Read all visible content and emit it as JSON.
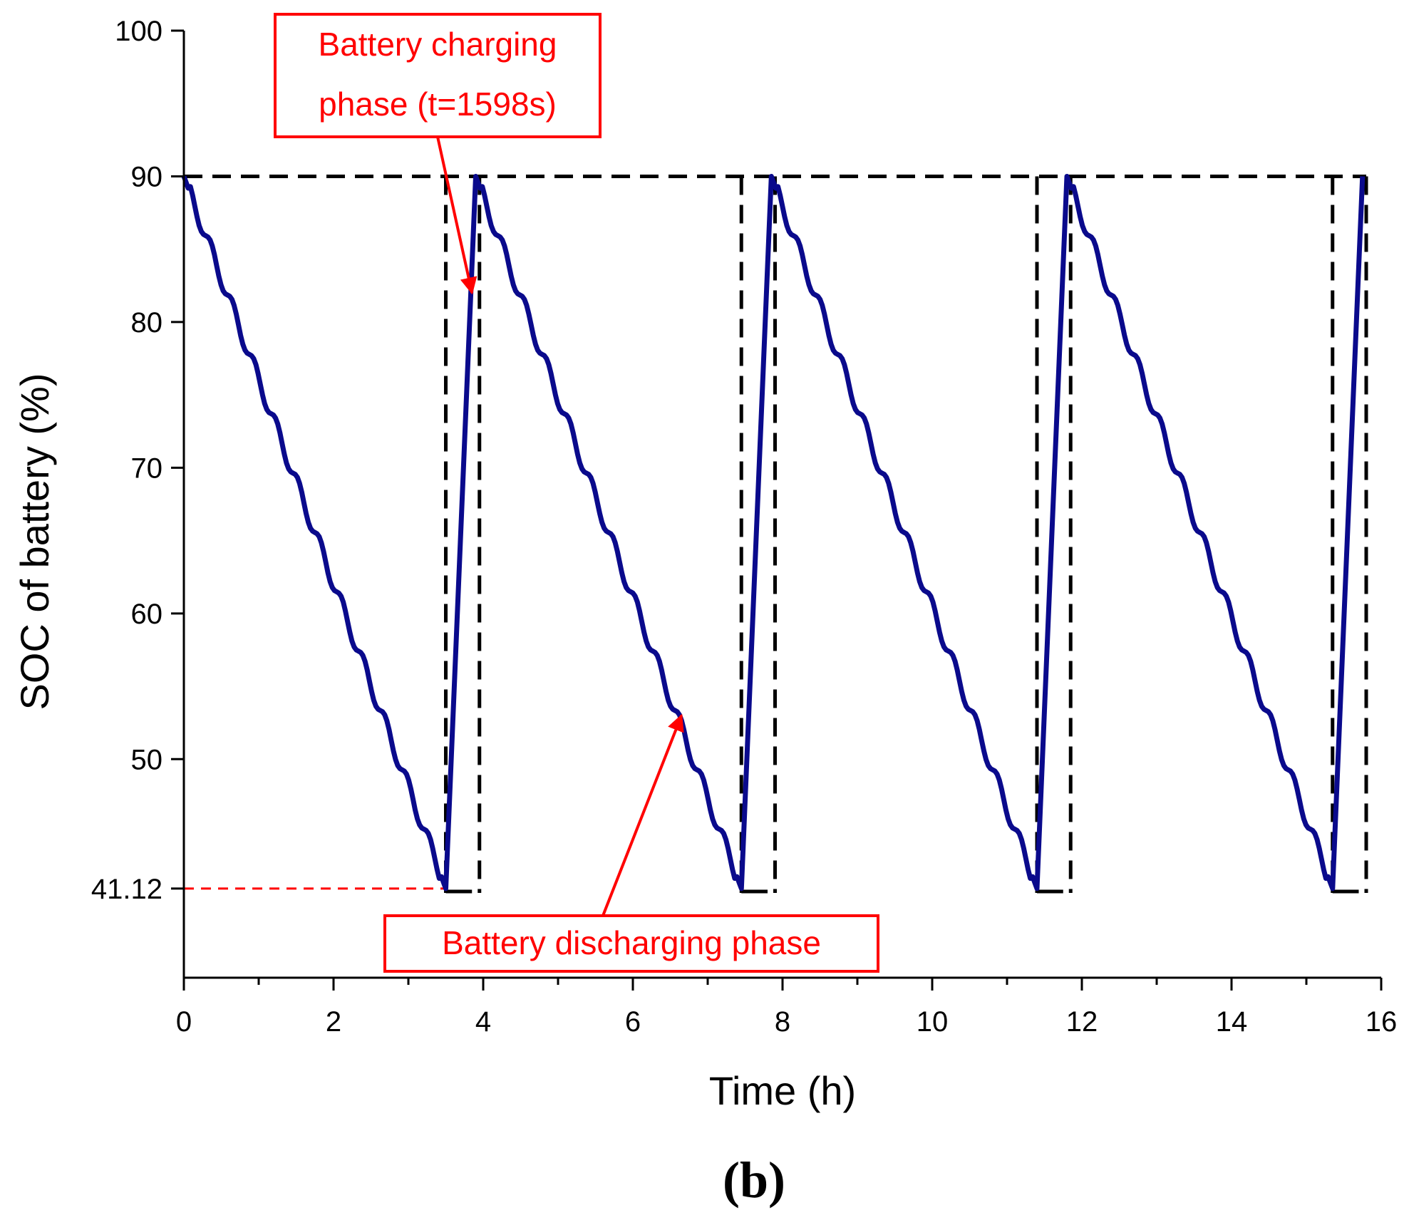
{
  "chart_data": {
    "type": "line",
    "panel_label": "(b)",
    "xlabel": "Time (h)",
    "ylabel": "SOC of battery (%)",
    "xlim": [
      0,
      16
    ],
    "ylim": [
      35,
      100
    ],
    "x_ticks": [
      {
        "value": 0,
        "label": "0"
      },
      {
        "value": 2,
        "label": "2"
      },
      {
        "value": 4,
        "label": "4"
      },
      {
        "value": 6,
        "label": "6"
      },
      {
        "value": 8,
        "label": "8"
      },
      {
        "value": 10,
        "label": "10"
      },
      {
        "value": 12,
        "label": "12"
      },
      {
        "value": 14,
        "label": "14"
      },
      {
        "value": 16,
        "label": "16"
      }
    ],
    "y_ticks": [
      {
        "value": 41.12,
        "label": "41.12"
      },
      {
        "value": 50,
        "label": "50"
      },
      {
        "value": 60,
        "label": "60"
      },
      {
        "value": 70,
        "label": "70"
      },
      {
        "value": 80,
        "label": "80"
      },
      {
        "value": 90,
        "label": "90"
      },
      {
        "value": 100,
        "label": "100"
      }
    ],
    "series": [
      {
        "name": "SOC",
        "color": "#0a0a8c",
        "cycles": [
          {
            "start": 0.0,
            "min_time": 3.5,
            "peak_time": 3.9
          },
          {
            "start": 3.9,
            "min_time": 7.45,
            "peak_time": 7.85
          },
          {
            "start": 7.85,
            "min_time": 11.4,
            "peak_time": 11.8
          },
          {
            "start": 11.8,
            "min_time": 15.35,
            "peak_time": 15.75
          }
        ],
        "max": 90,
        "min": 41.12
      }
    ],
    "reference_lines": {
      "upper_level": 90,
      "lower_level": 41.12,
      "verticals": [
        3.5,
        3.95,
        7.45,
        7.9,
        11.4,
        11.85,
        15.35,
        15.8
      ],
      "lower_ref_color": "#ff0000",
      "guide_color": "#000000"
    },
    "annotations": [
      {
        "lines": [
          "Battery charging",
          "phase (t=1598s)"
        ],
        "target": {
          "x": 3.85,
          "y": 82
        },
        "color": "#ff0000"
      },
      {
        "lines": [
          "Battery discharging phase"
        ],
        "target": {
          "x": 6.65,
          "y": 53
        },
        "color": "#ff0000"
      }
    ]
  }
}
